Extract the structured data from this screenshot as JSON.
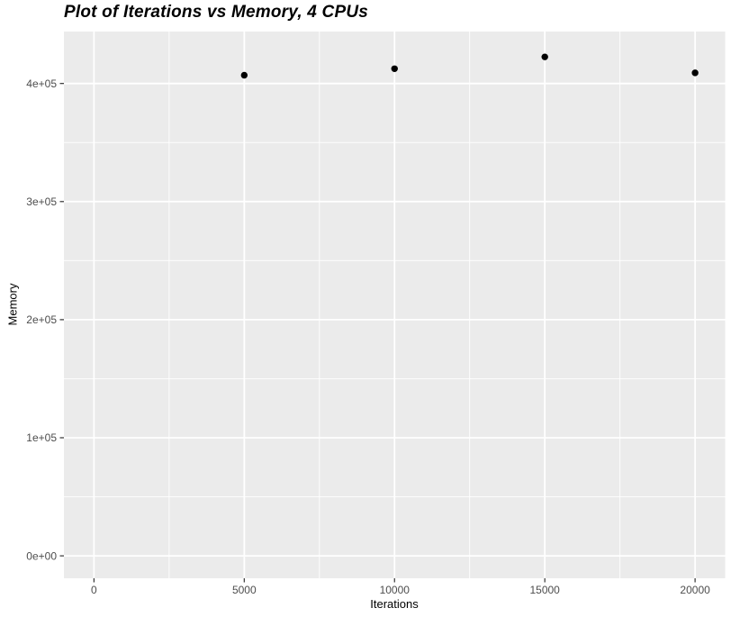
{
  "chart_data": {
    "type": "scatter",
    "title": "Plot of Iterations vs Memory, 4 CPUs",
    "xlabel": "Iterations",
    "ylabel": "Memory",
    "x": [
      5000,
      10000,
      15000,
      20000
    ],
    "y": [
      407000,
      412500,
      422500,
      409000
    ],
    "x_ticks": [
      0,
      5000,
      10000,
      15000,
      20000
    ],
    "x_tick_labels": [
      "0",
      "5000",
      "10000",
      "15000",
      "20000"
    ],
    "y_ticks": [
      0,
      100000,
      200000,
      300000,
      400000
    ],
    "y_tick_labels": [
      "0e+00",
      "1e+05",
      "2e+05",
      "3e+05",
      "4e+05"
    ],
    "x_minor": [
      2500,
      7500,
      12500,
      17500
    ],
    "y_minor": [
      50000,
      150000,
      250000,
      350000
    ],
    "xlim": [
      -1000,
      21000
    ],
    "ylim": [
      -19000,
      444000
    ],
    "grid": true,
    "legend": false,
    "colors": {
      "panel_bg": "#EBEBEB",
      "grid": "#FFFFFF",
      "point": "#000000",
      "tick_mark": "#333333",
      "tick_text": "#4D4D4D",
      "axis_title_text": "#000000",
      "title_text": "#000000",
      "page_bg": "#FFFFFF"
    }
  }
}
